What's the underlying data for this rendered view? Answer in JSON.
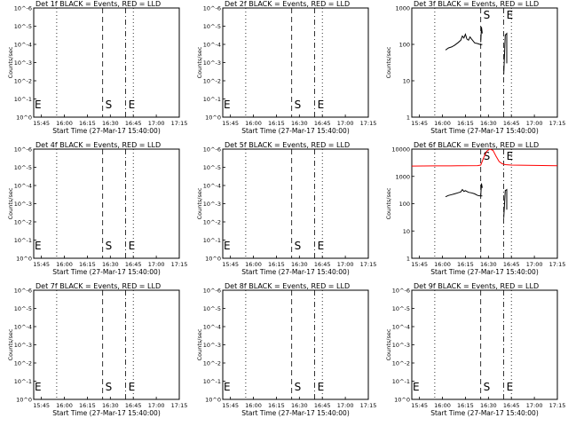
{
  "colors": {
    "events": "#000000",
    "lld": "#ff0000",
    "background": "#ffffff"
  },
  "marker_labels": {
    "start": "S",
    "end": "E"
  },
  "chart_data": [
    {
      "type": "line",
      "title": "Det 1f BLACK = Events, RED = LLD",
      "xlabel": "Start Time (27-Mar-17 15:40:00)",
      "ylabel": "Counts/sec",
      "x_ticks": [
        "15:45",
        "16:00",
        "16:15",
        "16:30",
        "16:45",
        "17:00",
        "17:15"
      ],
      "xlim_min": [
        5,
        100
      ],
      "y_scale": "log",
      "ylim": [
        1,
        10000
      ],
      "y_tick_labels": [
        "10^0",
        "10^-1",
        "10^-2",
        "10^-3",
        "10^-4",
        "10^-5",
        "10^-6"
      ],
      "vlines_min": {
        "dotted": [
          20,
          70
        ],
        "dashed": [
          50
        ],
        "dashdot": [
          65
        ]
      },
      "markers": [
        {
          "label": "S",
          "x_min": 50
        },
        {
          "label": "E",
          "x_min": 65
        },
        {
          "label": "E",
          "x_min": 5
        }
      ],
      "series": []
    },
    {
      "type": "line",
      "title": "Det 2f BLACK = Events, RED = LLD",
      "xlabel": "Start Time (27-Mar-17 15:40:00)",
      "ylabel": "Counts/sec",
      "x_ticks": [
        "15:45",
        "16:00",
        "16:15",
        "16:30",
        "16:45",
        "17:00",
        "17:15"
      ],
      "xlim_min": [
        5,
        100
      ],
      "y_scale": "log",
      "ylim": [
        1,
        10000
      ],
      "y_tick_labels": [
        "10^0",
        "10^-1",
        "10^-2",
        "10^-3",
        "10^-4",
        "10^-5",
        "10^-6"
      ],
      "vlines_min": {
        "dotted": [
          20,
          70
        ],
        "dashed": [
          50
        ],
        "dashdot": [
          65
        ]
      },
      "markers": [
        {
          "label": "S",
          "x_min": 50
        },
        {
          "label": "E",
          "x_min": 65
        },
        {
          "label": "E",
          "x_min": 5
        }
      ],
      "series": []
    },
    {
      "type": "line",
      "title": "Det 3f BLACK = Events, RED = LLD",
      "xlabel": "Start Time (27-Mar-17 15:40:00)",
      "ylabel": "Counts/sec",
      "x_ticks": [
        "15:45",
        "16:00",
        "16:15",
        "16:30",
        "16:45",
        "17:00",
        "17:15"
      ],
      "xlim_min": [
        5,
        100
      ],
      "y_scale": "log",
      "ylim": [
        1,
        1000
      ],
      "y_tick_labels": [
        "1",
        "10",
        "100",
        "1000"
      ],
      "vlines_min": {
        "dotted": [
          20,
          70
        ],
        "dashed": [
          50
        ],
        "dashdot": [
          65
        ]
      },
      "markers": [
        {
          "label": "S",
          "x_min": 50
        },
        {
          "label": "E",
          "x_min": 65
        }
      ],
      "series": [
        {
          "color": "#000000",
          "segments": [
            [
              [
                27,
                70
              ],
              [
                29,
                80
              ],
              [
                31,
                85
              ],
              [
                33,
                95
              ],
              [
                35,
                110
              ],
              [
                37,
                130
              ],
              [
                38,
                170
              ],
              [
                39,
                150
              ],
              [
                40,
                190
              ],
              [
                41,
                140
              ],
              [
                42,
                130
              ],
              [
                43,
                160
              ],
              [
                44,
                140
              ],
              [
                46,
                110
              ],
              [
                48,
                105
              ],
              [
                50,
                98
              ],
              [
                51,
                100
              ]
            ],
            [
              [
                50,
                115
              ],
              [
                50.5,
                300
              ],
              [
                51,
                200
              ]
            ],
            [
              [
                65,
                15
              ],
              [
                66,
                180
              ],
              [
                67,
                200
              ],
              [
                67,
                30
              ]
            ]
          ]
        }
      ]
    },
    {
      "type": "line",
      "title": "Det 4f BLACK = Events, RED = LLD",
      "xlabel": "Start Time (27-Mar-17 15:40:00)",
      "ylabel": "Counts/sec",
      "x_ticks": [
        "15:45",
        "16:00",
        "16:15",
        "16:30",
        "16:45",
        "17:00",
        "17:15"
      ],
      "xlim_min": [
        5,
        100
      ],
      "y_scale": "log",
      "ylim": [
        1,
        10000
      ],
      "y_tick_labels": [
        "10^0",
        "10^-1",
        "10^-2",
        "10^-3",
        "10^-4",
        "10^-5",
        "10^-6"
      ],
      "vlines_min": {
        "dotted": [
          20,
          70
        ],
        "dashed": [
          50
        ],
        "dashdot": [
          65
        ]
      },
      "markers": [
        {
          "label": "S",
          "x_min": 50
        },
        {
          "label": "E",
          "x_min": 65
        },
        {
          "label": "E",
          "x_min": 5
        }
      ],
      "series": []
    },
    {
      "type": "line",
      "title": "Det 5f BLACK = Events, RED = LLD",
      "xlabel": "Start Time (27-Mar-17 15:40:00)",
      "ylabel": "Counts/sec",
      "x_ticks": [
        "15:45",
        "16:00",
        "16:15",
        "16:30",
        "16:45",
        "17:00",
        "17:15"
      ],
      "xlim_min": [
        5,
        100
      ],
      "y_scale": "log",
      "ylim": [
        1,
        10000
      ],
      "y_tick_labels": [
        "10^0",
        "10^-1",
        "10^-2",
        "10^-3",
        "10^-4",
        "10^-5",
        "10^-6"
      ],
      "vlines_min": {
        "dotted": [
          20,
          70
        ],
        "dashed": [
          50
        ],
        "dashdot": [
          65
        ]
      },
      "markers": [
        {
          "label": "S",
          "x_min": 50
        },
        {
          "label": "E",
          "x_min": 65
        },
        {
          "label": "E",
          "x_min": 5
        }
      ],
      "series": []
    },
    {
      "type": "line",
      "title": "Det 6f BLACK = Events, RED = LLD",
      "xlabel": "Start Time (27-Mar-17 15:40:00)",
      "ylabel": "Counts/sec",
      "x_ticks": [
        "15:45",
        "16:00",
        "16:15",
        "16:30",
        "16:45",
        "17:00",
        "17:15"
      ],
      "xlim_min": [
        5,
        100
      ],
      "y_scale": "log",
      "ylim": [
        1,
        10000
      ],
      "y_tick_labels": [
        "1",
        "10",
        "100",
        "1000",
        "10000"
      ],
      "vlines_min": {
        "dotted": [
          20,
          70
        ],
        "dashed": [
          50
        ],
        "dashdot": [
          65
        ]
      },
      "markers": [
        {
          "label": "S",
          "x_min": 50
        },
        {
          "label": "E",
          "x_min": 65
        }
      ],
      "series": [
        {
          "color": "#ff0000",
          "segments": [
            [
              [
                5,
                2400
              ],
              [
                20,
                2420
              ],
              [
                35,
                2450
              ],
              [
                48,
                2480
              ],
              [
                50,
                2600
              ],
              [
                52,
                5000
              ],
              [
                54,
                8500
              ],
              [
                56,
                10000
              ],
              [
                58,
                9000
              ],
              [
                60,
                5500
              ],
              [
                62,
                3500
              ],
              [
                64,
                2900
              ],
              [
                66,
                2700
              ],
              [
                70,
                2600
              ],
              [
                80,
                2550
              ],
              [
                90,
                2500
              ],
              [
                100,
                2450
              ]
            ]
          ]
        },
        {
          "color": "#000000",
          "segments": [
            [
              [
                27,
                180
              ],
              [
                29,
                200
              ],
              [
                31,
                215
              ],
              [
                33,
                230
              ],
              [
                35,
                250
              ],
              [
                37,
                270
              ],
              [
                38,
                330
              ],
              [
                39,
                280
              ],
              [
                40,
                300
              ],
              [
                42,
                260
              ],
              [
                44,
                250
              ],
              [
                46,
                230
              ],
              [
                48,
                200
              ],
              [
                50,
                190
              ],
              [
                51,
                195
              ]
            ],
            [
              [
                50,
                200
              ],
              [
                50.5,
                550
              ],
              [
                51,
                380
              ]
            ],
            [
              [
                65,
                30
              ],
              [
                66,
                300
              ],
              [
                67,
                330
              ],
              [
                67,
                60
              ]
            ]
          ]
        }
      ]
    },
    {
      "type": "line",
      "title": "Det 7f BLACK = Events, RED = LLD",
      "xlabel": "Start Time (27-Mar-17 15:40:00)",
      "ylabel": "Counts/sec",
      "x_ticks": [
        "15:45",
        "16:00",
        "16:15",
        "16:30",
        "16:45",
        "17:00",
        "17:15"
      ],
      "xlim_min": [
        5,
        100
      ],
      "y_scale": "log",
      "ylim": [
        1,
        10000
      ],
      "y_tick_labels": [
        "10^0",
        "10^-1",
        "10^-2",
        "10^-3",
        "10^-4",
        "10^-5",
        "10^-6"
      ],
      "vlines_min": {
        "dotted": [
          20,
          70
        ],
        "dashed": [
          50
        ],
        "dashdot": [
          65
        ]
      },
      "markers": [
        {
          "label": "S",
          "x_min": 50
        },
        {
          "label": "E",
          "x_min": 65
        },
        {
          "label": "E",
          "x_min": 5
        }
      ],
      "series": []
    },
    {
      "type": "line",
      "title": "Det 8f BLACK = Events, RED = LLD",
      "xlabel": "Start Time (27-Mar-17 15:40:00)",
      "ylabel": "Counts/sec",
      "x_ticks": [
        "15:45",
        "16:00",
        "16:15",
        "16:30",
        "16:45",
        "17:00",
        "17:15"
      ],
      "xlim_min": [
        5,
        100
      ],
      "y_scale": "log",
      "ylim": [
        1,
        10000
      ],
      "y_tick_labels": [
        "10^0",
        "10^-1",
        "10^-2",
        "10^-3",
        "10^-4",
        "10^-5",
        "10^-6"
      ],
      "vlines_min": {
        "dotted": [
          20,
          70
        ],
        "dashed": [
          50
        ],
        "dashdot": [
          65
        ]
      },
      "markers": [
        {
          "label": "S",
          "x_min": 50
        },
        {
          "label": "E",
          "x_min": 65
        },
        {
          "label": "E",
          "x_min": 5
        }
      ],
      "series": []
    },
    {
      "type": "line",
      "title": "Det 9f BLACK = Events, RED = LLD",
      "xlabel": "Start Time (27-Mar-17 15:40:00)",
      "ylabel": "Counts/sec",
      "x_ticks": [
        "15:45",
        "16:00",
        "16:15",
        "16:30",
        "16:45",
        "17:00",
        "17:15"
      ],
      "xlim_min": [
        5,
        100
      ],
      "y_scale": "log",
      "ylim": [
        1,
        10000
      ],
      "y_tick_labels": [
        "10^0",
        "10^-1",
        "10^-2",
        "10^-3",
        "10^-4",
        "10^-5",
        "10^-6"
      ],
      "vlines_min": {
        "dotted": [
          20,
          70
        ],
        "dashed": [
          50
        ],
        "dashdot": [
          65
        ]
      },
      "markers": [
        {
          "label": "S",
          "x_min": 50
        },
        {
          "label": "E",
          "x_min": 65
        },
        {
          "label": "E",
          "x_min": 5
        }
      ],
      "series": []
    }
  ]
}
